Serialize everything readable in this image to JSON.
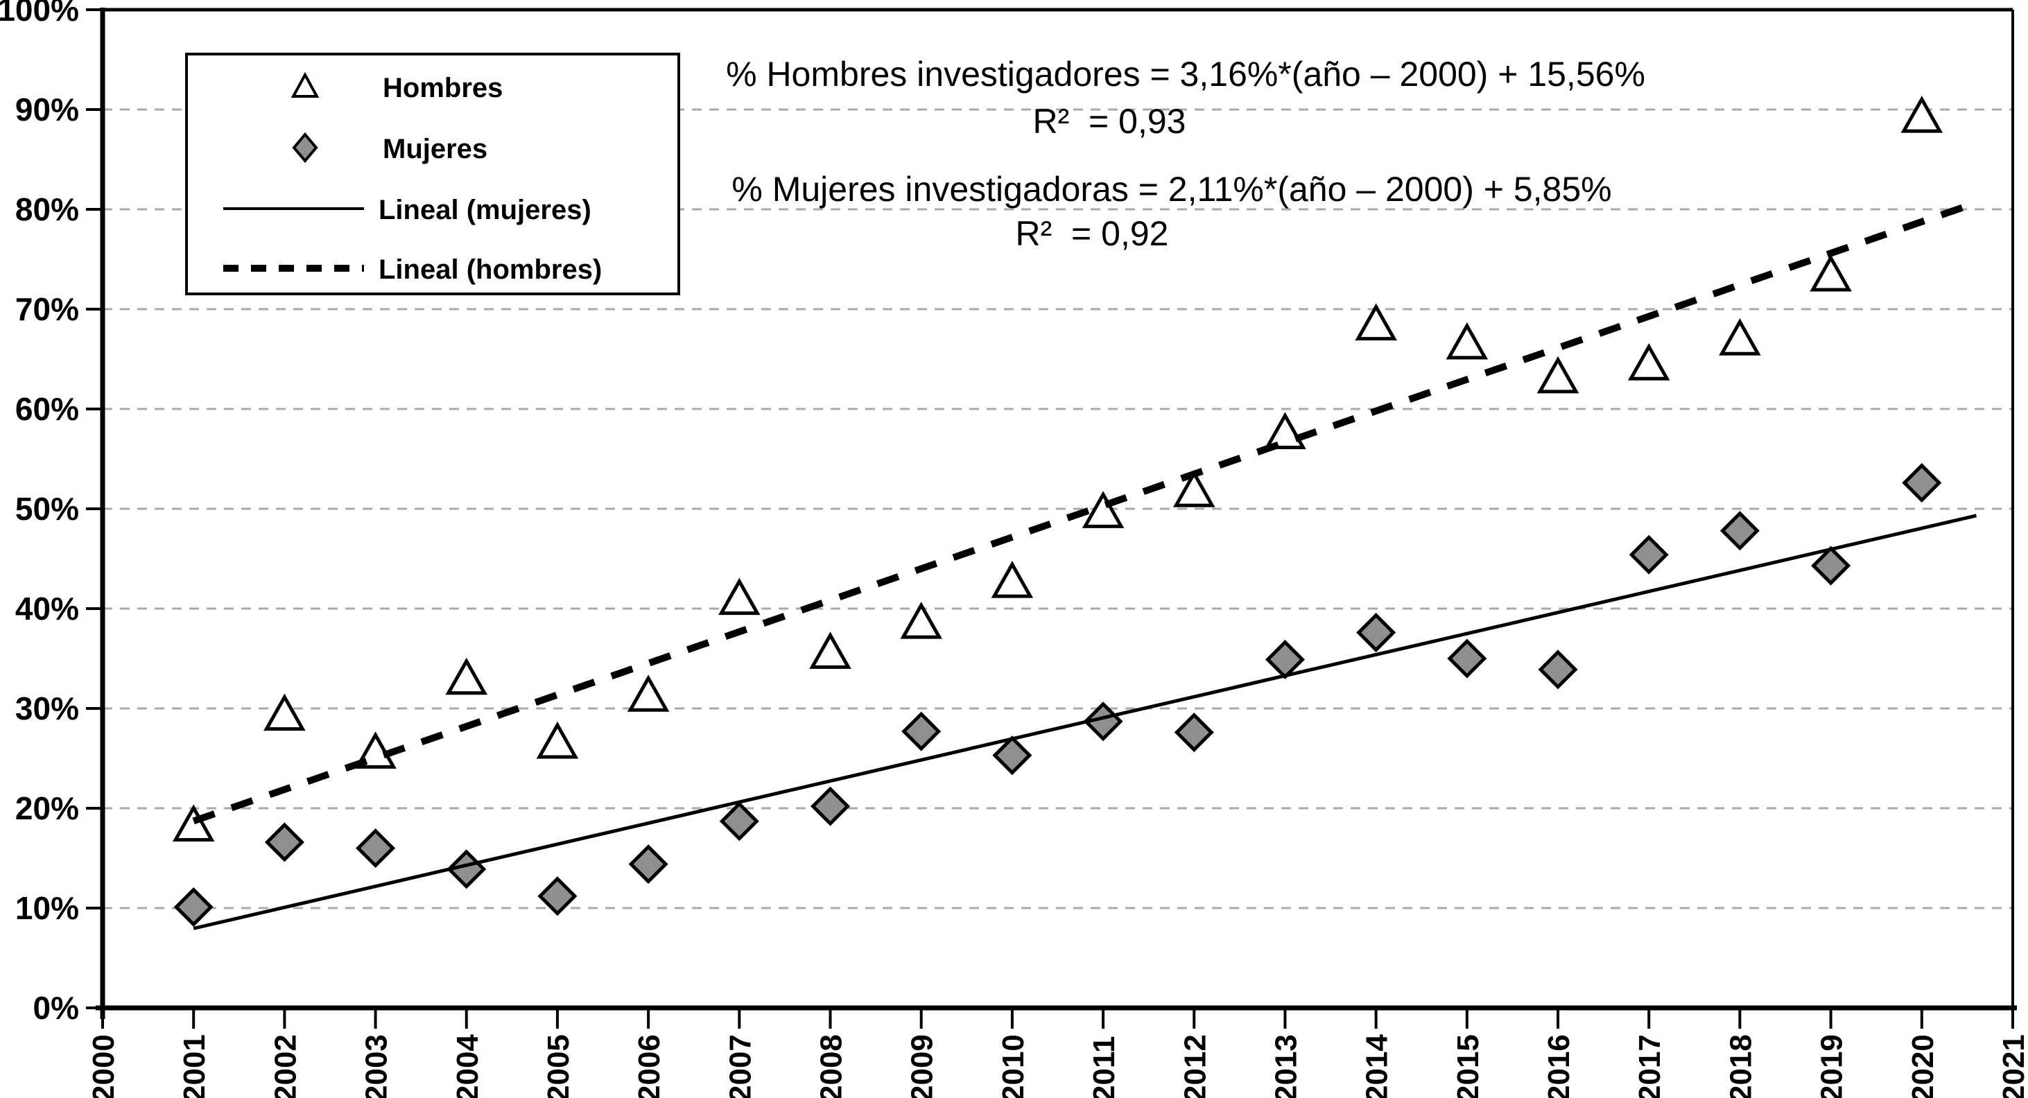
{
  "chart_data": {
    "type": "scatter",
    "title": "",
    "xlabel": "",
    "ylabel": "",
    "xlim": [
      2000,
      2021
    ],
    "ylim": [
      0,
      100
    ],
    "grid": "horizontal-dashed",
    "legend_position": "top-left",
    "x_ticks": [
      "2000",
      "2001",
      "2002",
      "2003",
      "2004",
      "2005",
      "2006",
      "2007",
      "2008",
      "2009",
      "2010",
      "2011",
      "2012",
      "2013",
      "2014",
      "2015",
      "2016",
      "2017",
      "2018",
      "2019",
      "2020",
      "2021"
    ],
    "y_ticks": [
      "0%",
      "10%",
      "20%",
      "30%",
      "40%",
      "50%",
      "60%",
      "70%",
      "80%",
      "90%",
      "100%"
    ],
    "x": [
      2001,
      2002,
      2003,
      2004,
      2005,
      2006,
      2007,
      2008,
      2009,
      2010,
      2011,
      2012,
      2013,
      2014,
      2015,
      2016,
      2017,
      2018,
      2019,
      2020
    ],
    "series": [
      {
        "name": "Hombres",
        "marker": "triangle",
        "values": [
          18.3,
          29.4,
          25.6,
          33.0,
          26.6,
          31.3,
          41.0,
          35.6,
          38.6,
          42.7,
          49.7,
          51.8,
          57.6,
          68.5,
          66.6,
          63.2,
          64.5,
          67.0,
          73.4,
          89.3
        ]
      },
      {
        "name": "Mujeres",
        "marker": "diamond",
        "values": [
          10.1,
          16.6,
          16.0,
          13.9,
          11.2,
          14.4,
          18.7,
          20.2,
          27.7,
          25.3,
          28.7,
          27.6,
          34.9,
          37.6,
          35.0,
          33.9,
          45.4,
          47.8,
          44.3,
          52.6
        ]
      }
    ],
    "trendlines": [
      {
        "name": "Lineal (mujeres)",
        "style": "solid",
        "slope": 2.11,
        "intercept": 5.85,
        "x_start": 2001,
        "x_end": 2020.6,
        "r2": 0.92
      },
      {
        "name": "Lineal (hombres)",
        "style": "dashed",
        "slope": 3.16,
        "intercept": 15.56,
        "x_start": 2001,
        "x_end": 2020.6,
        "r2": 0.93
      }
    ]
  },
  "legend": {
    "items": [
      {
        "label": "Hombres",
        "symbol": "triangle-marker"
      },
      {
        "label": "Mujeres",
        "symbol": "diamond-marker"
      },
      {
        "label": "Lineal (mujeres)",
        "symbol": "solid-line"
      },
      {
        "label": "Lineal (hombres)",
        "symbol": "dashed-line"
      }
    ]
  },
  "annotations": {
    "eq_hombres": "% Hombres investigadores = 3,16%*(año – 2000) + 15,56%",
    "r2_hombres": "R²  = 0,93",
    "eq_mujeres": "% Mujeres investigadoras = 2,11%*(año – 2000) + 5,85%",
    "r2_mujeres": "R²  = 0,92"
  },
  "colors": {
    "ink": "#000000",
    "background": "#ffffff",
    "gridline": "#a9a9a9",
    "mujeres_fill": "#8f8f8f",
    "hombres_fill": "#ffffff"
  }
}
